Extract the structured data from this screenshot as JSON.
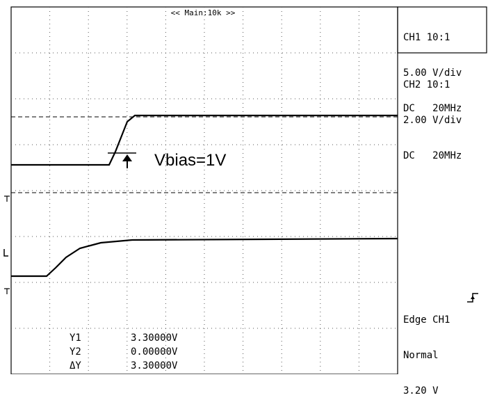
{
  "header": {
    "timebase": "<< Main:10k >>"
  },
  "channels": [
    {
      "name": "CH1 10:1",
      "scale": "5.00 V/div",
      "coupling": "DC",
      "bandwidth": "20MHz"
    },
    {
      "name": "CH2 10:1",
      "scale": "2.00 V/div",
      "coupling": "DC",
      "bandwidth": "20MHz"
    }
  ],
  "trigger": {
    "label": "Edge CH1",
    "mode": "Normal",
    "level": "3.20 V"
  },
  "annotation": {
    "text": "Vbias=1V"
  },
  "cursors": [
    {
      "label": "Y1",
      "value": "3.30000V"
    },
    {
      "label": "Y2",
      "value": "0.00000V"
    },
    {
      "label": "ΔY",
      "value": "3.30000V"
    }
  ],
  "colors": {
    "trace": "#000000",
    "grid": "#555555",
    "background": "#ffffff"
  },
  "icons": {
    "trigger_edge": "rising-edge-icon",
    "arrow": "up-arrow-icon"
  }
}
